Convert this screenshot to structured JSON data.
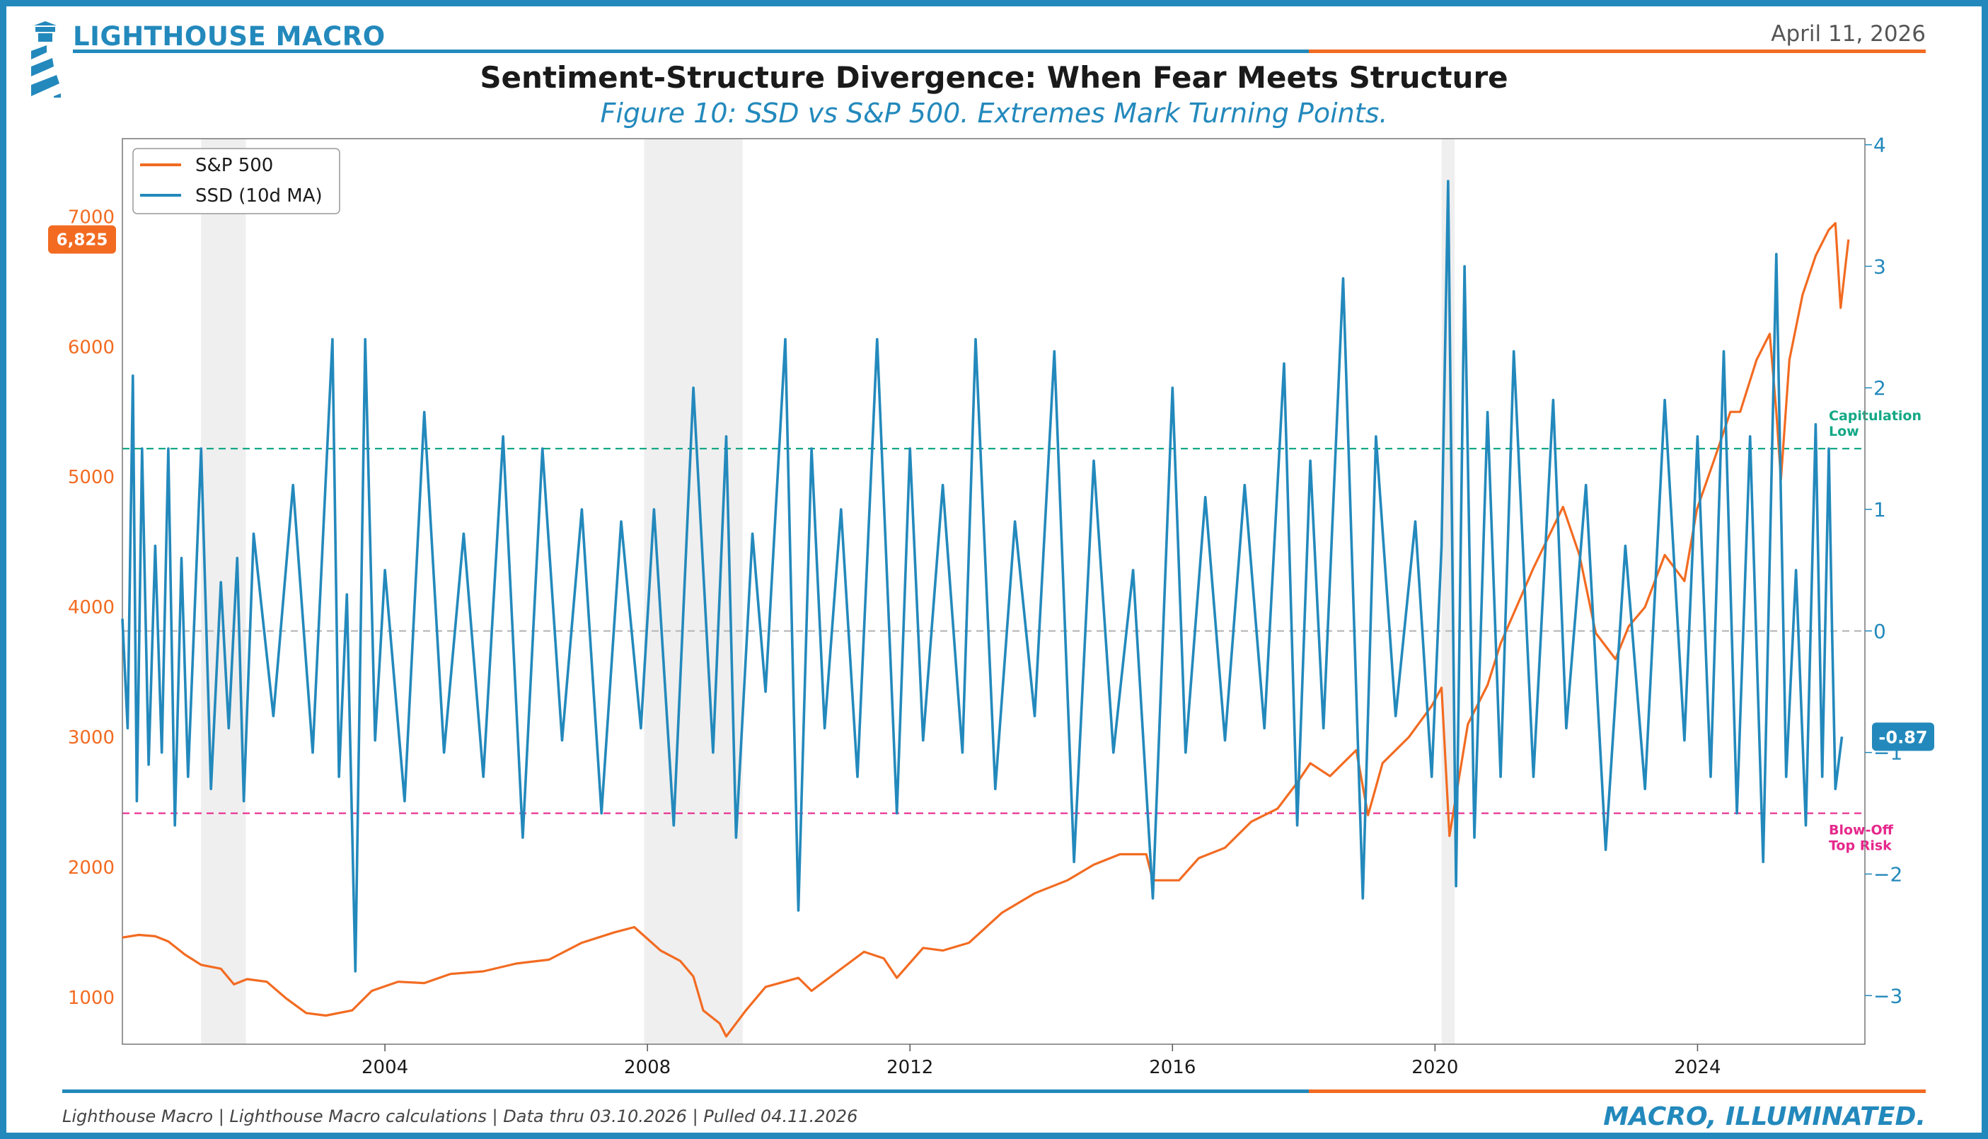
{
  "header": {
    "brand": "LIGHTHOUSE MACRO",
    "date": "April 11, 2026",
    "title": "Sentiment-Structure Divergence: When Fear Meets Structure",
    "subtitle": "Figure 10: SSD vs S&P 500. Extremes Mark Turning Points."
  },
  "footer": {
    "source": "Lighthouse Macro | Lighthouse Macro calculations | Data thru 03.10.2026 | Pulled 04.11.2026",
    "tagline": "MACRO, ILLUMINATED."
  },
  "colors": {
    "brand_blue": "#2389BC",
    "brand_orange": "#F26B21",
    "capitulation_green": "#13A886",
    "blowoff_pink": "#E6288C",
    "recession_shade": "#EFEFEF"
  },
  "chart_data": {
    "type": "line",
    "title": "Sentiment-Structure Divergence: When Fear Meets Structure",
    "xlim": [
      2000.0,
      2026.55
    ],
    "x_ticks": [
      2004,
      2008,
      2012,
      2016,
      2020,
      2024
    ],
    "x_tick_labels": [
      "2004",
      "2008",
      "2012",
      "2016",
      "2020",
      "2024"
    ],
    "left_axis": {
      "label": "S&P 500",
      "ylim": [
        640,
        7600
      ],
      "ticks": [
        1000,
        2000,
        3000,
        4000,
        5000,
        6000,
        7000
      ],
      "tick_labels": [
        "1000",
        "2000",
        "3000",
        "4000",
        "5000",
        "6000",
        "7000"
      ]
    },
    "right_axis": {
      "label": "SSD (10d MA)",
      "ylim": [
        -3.4,
        4.05
      ],
      "ticks": [
        4,
        3,
        2,
        1,
        0,
        -1,
        -2,
        -3
      ],
      "tick_labels": [
        "4",
        "3",
        "2",
        "1",
        "0",
        "−1",
        "−2",
        "−3"
      ]
    },
    "legend": {
      "position": "top-left",
      "entries": [
        {
          "label": "S&P 500",
          "color": "#F26B21"
        },
        {
          "label": "SSD (10d MA)",
          "color": "#2389BC"
        }
      ]
    },
    "recession_periods": [
      [
        2001.2,
        2001.88
      ],
      [
        2007.95,
        2009.45
      ],
      [
        2020.1,
        2020.3
      ]
    ],
    "reference_lines": [
      {
        "axis": "right",
        "value": 1.5,
        "style": "dashed",
        "color": "#13A886",
        "label": "Capitulation Low"
      },
      {
        "axis": "right",
        "value": -1.5,
        "style": "dashed",
        "color": "#E6288C",
        "label": "Blow-Off Top Risk"
      },
      {
        "axis": "right",
        "value": 0,
        "style": "dashed",
        "color": "#BBBBBB",
        "label": ""
      }
    ],
    "last_value_badges": {
      "sp500": "6,825",
      "ssd": "-0.87"
    },
    "series": [
      {
        "name": "S&P 500",
        "axis": "left",
        "color": "#F26B21",
        "x": [
          2000.0,
          2000.25,
          2000.5,
          2000.7,
          2000.95,
          2001.2,
          2001.5,
          2001.7,
          2001.9,
          2002.2,
          2002.5,
          2002.8,
          2003.1,
          2003.5,
          2003.8,
          2004.2,
          2004.6,
          2005.0,
          2005.5,
          2006.0,
          2006.5,
          2007.0,
          2007.5,
          2007.8,
          2008.2,
          2008.5,
          2008.7,
          2008.85,
          2009.1,
          2009.2,
          2009.5,
          2009.8,
          2010.3,
          2010.5,
          2010.9,
          2011.3,
          2011.6,
          2011.8,
          2012.2,
          2012.5,
          2012.9,
          2013.4,
          2013.9,
          2014.4,
          2014.8,
          2015.2,
          2015.6,
          2015.7,
          2016.1,
          2016.4,
          2016.8,
          2017.2,
          2017.6,
          2017.9,
          2018.1,
          2018.4,
          2018.8,
          2018.98,
          2019.2,
          2019.6,
          2019.95,
          2020.1,
          2020.22,
          2020.5,
          2020.8,
          2021.0,
          2021.5,
          2021.95,
          2022.2,
          2022.45,
          2022.75,
          2022.95,
          2023.2,
          2023.5,
          2023.8,
          2023.99,
          2024.3,
          2024.5,
          2024.65,
          2024.9,
          2025.1,
          2025.2,
          2025.27,
          2025.4,
          2025.6,
          2025.8,
          2026.0,
          2026.1,
          2026.18,
          2026.3
        ],
        "values": [
          1460,
          1480,
          1470,
          1430,
          1330,
          1250,
          1220,
          1100,
          1140,
          1120,
          990,
          880,
          860,
          900,
          1050,
          1120,
          1110,
          1180,
          1200,
          1260,
          1290,
          1420,
          1500,
          1540,
          1360,
          1280,
          1160,
          900,
          800,
          700,
          900,
          1080,
          1150,
          1050,
          1200,
          1350,
          1300,
          1150,
          1380,
          1360,
          1420,
          1650,
          1800,
          1900,
          2020,
          2100,
          2100,
          1900,
          1900,
          2070,
          2150,
          2350,
          2450,
          2650,
          2800,
          2700,
          2900,
          2400,
          2800,
          3000,
          3240,
          3380,
          2240,
          3100,
          3400,
          3720,
          4300,
          4770,
          4400,
          3800,
          3600,
          3850,
          4000,
          4400,
          4200,
          4750,
          5200,
          5500,
          5500,
          5900,
          6100,
          5500,
          4980,
          5900,
          6400,
          6700,
          6900,
          6950,
          6300,
          6825
        ]
      },
      {
        "name": "SSD (10d MA)",
        "axis": "right",
        "color": "#2389BC",
        "x": [
          2000.0,
          2000.08,
          2000.16,
          2000.22,
          2000.3,
          2000.4,
          2000.5,
          2000.6,
          2000.7,
          2000.8,
          2000.9,
          2001.0,
          2001.2,
          2001.35,
          2001.5,
          2001.62,
          2001.75,
          2001.85,
          2002.0,
          2002.3,
          2002.6,
          2002.9,
          2003.2,
          2003.3,
          2003.42,
          2003.55,
          2003.7,
          2003.85,
          2004.0,
          2004.3,
          2004.6,
          2004.9,
          2005.2,
          2005.5,
          2005.8,
          2006.1,
          2006.4,
          2006.7,
          2007.0,
          2007.3,
          2007.6,
          2007.9,
          2008.1,
          2008.4,
          2008.7,
          2009.0,
          2009.2,
          2009.35,
          2009.6,
          2009.8,
          2010.1,
          2010.3,
          2010.5,
          2010.7,
          2010.95,
          2011.2,
          2011.5,
          2011.8,
          2012.0,
          2012.2,
          2012.5,
          2012.8,
          2013.0,
          2013.3,
          2013.6,
          2013.9,
          2014.2,
          2014.5,
          2014.8,
          2015.1,
          2015.4,
          2015.7,
          2016.0,
          2016.2,
          2016.5,
          2016.8,
          2017.1,
          2017.4,
          2017.7,
          2017.9,
          2018.1,
          2018.3,
          2018.6,
          2018.9,
          2019.1,
          2019.4,
          2019.7,
          2019.95,
          2020.1,
          2020.2,
          2020.32,
          2020.45,
          2020.6,
          2020.8,
          2021.0,
          2021.2,
          2021.5,
          2021.8,
          2022.0,
          2022.3,
          2022.6,
          2022.9,
          2023.2,
          2023.5,
          2023.8,
          2024.0,
          2024.2,
          2024.4,
          2024.6,
          2024.8,
          2025.0,
          2025.2,
          2025.35,
          2025.5,
          2025.65,
          2025.8,
          2025.9,
          2026.0,
          2026.05,
          2026.1,
          2026.2
        ],
        "values": [
          0.1,
          -0.8,
          2.1,
          -1.4,
          1.5,
          -1.1,
          0.7,
          -1.0,
          1.5,
          -1.6,
          0.6,
          -1.2,
          1.5,
          -1.3,
          0.4,
          -0.8,
          0.6,
          -1.4,
          0.8,
          -0.7,
          1.2,
          -1.0,
          2.4,
          -1.2,
          0.3,
          -2.8,
          2.4,
          -0.9,
          0.5,
          -1.4,
          1.8,
          -1.0,
          0.8,
          -1.2,
          1.6,
          -1.7,
          1.5,
          -0.9,
          1.0,
          -1.5,
          0.9,
          -0.8,
          1.0,
          -1.6,
          2.0,
          -1.0,
          1.6,
          -1.7,
          0.8,
          -0.5,
          2.4,
          -2.3,
          1.5,
          -0.8,
          1.0,
          -1.2,
          2.4,
          -1.5,
          1.5,
          -0.9,
          1.2,
          -1.0,
          2.4,
          -1.3,
          0.9,
          -0.7,
          2.3,
          -1.9,
          1.4,
          -1.0,
          0.5,
          -2.2,
          2.0,
          -1.0,
          1.1,
          -0.9,
          1.2,
          -0.8,
          2.2,
          -1.6,
          1.4,
          -0.8,
          2.9,
          -2.2,
          1.6,
          -0.7,
          0.9,
          -1.2,
          0.7,
          3.7,
          -2.1,
          3.0,
          -1.7,
          1.8,
          -1.2,
          2.3,
          -1.2,
          1.9,
          -0.8,
          1.2,
          -1.8,
          0.7,
          -1.3,
          1.9,
          -0.9,
          1.6,
          -1.2,
          2.3,
          -1.5,
          1.6,
          -1.9,
          3.1,
          -1.2,
          0.5,
          -1.6,
          1.7,
          -1.2,
          1.5,
          0.0,
          -1.3,
          -0.87
        ]
      }
    ]
  }
}
